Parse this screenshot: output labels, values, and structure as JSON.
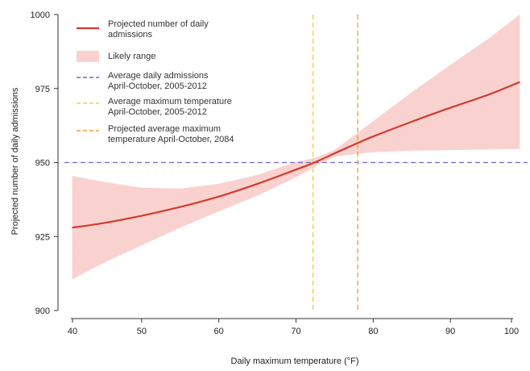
{
  "chart_data": {
    "type": "line",
    "xlabel": "Daily maximum temperature (°F)",
    "ylabel": "Projected number of daily admissions",
    "xlim": [
      40,
      100
    ],
    "ylim": [
      900,
      1000
    ],
    "x_ticks": [
      "40",
      "50",
      "60",
      "70",
      "80",
      "90",
      "100"
    ],
    "y_ticks": [
      "900",
      "925",
      "950",
      "975",
      "1000"
    ],
    "x_tick_values": [
      40,
      50,
      60,
      70,
      80,
      90,
      100
    ],
    "y_tick_values": [
      900,
      925,
      950,
      975,
      1000
    ],
    "grid": false,
    "legend_position": "top-left",
    "x": [
      41,
      45,
      50,
      55,
      60,
      65,
      70,
      72.4,
      75,
      78,
      80,
      85,
      90,
      95,
      99
    ],
    "series": [
      {
        "name": "Projected number of daily admissions",
        "values": [
          928,
          929.5,
          932,
          935,
          938.5,
          942.8,
          947.6,
          950,
          953.1,
          956.6,
          958.8,
          963.8,
          968.5,
          973,
          977.2
        ],
        "color": "#d33a2c"
      },
      {
        "name": "Likely range",
        "lower": [
          910.5,
          916,
          922,
          928,
          933.5,
          938.8,
          945,
          948.5,
          952,
          953,
          953.5,
          954,
          954.2,
          954.4,
          954.6
        ],
        "upper": [
          945.5,
          943.5,
          941.5,
          941.2,
          942.8,
          945.8,
          950.2,
          951.5,
          954.3,
          960,
          964,
          973.8,
          983,
          992,
          1000
        ],
        "color": "#f9d2cf"
      }
    ],
    "reference_lines": [
      {
        "name": "Average daily admissions April-October, 2005-2012",
        "orientation": "horizontal",
        "value": 950,
        "color": "#6b6bbf"
      },
      {
        "name": "Average maximum temperature April-October, 2005-2012",
        "orientation": "vertical",
        "value": 72.2,
        "color": "#e8d44d"
      },
      {
        "name": "Projected average maximum temperature April-October, 2084",
        "orientation": "vertical",
        "value": 78,
        "color": "#e8a33d"
      }
    ],
    "legend": [
      {
        "lines": [
          "Projected number of daily",
          "admissions"
        ],
        "kind": "line",
        "color": "#d33a2c"
      },
      {
        "lines": [
          "Likely range"
        ],
        "kind": "band",
        "color": "#f9d2cf"
      },
      {
        "lines": [
          "Average daily admissions",
          "April-October, 2005-2012"
        ],
        "kind": "dash",
        "color": "#6b6bbf"
      },
      {
        "lines": [
          "Average maximum temperature",
          "April-October, 2005-2012"
        ],
        "kind": "dash",
        "color": "#e8d44d"
      },
      {
        "lines": [
          "Projected average maximum",
          "temperature April-October, 2084"
        ],
        "kind": "dash",
        "color": "#e8a33d"
      }
    ]
  }
}
